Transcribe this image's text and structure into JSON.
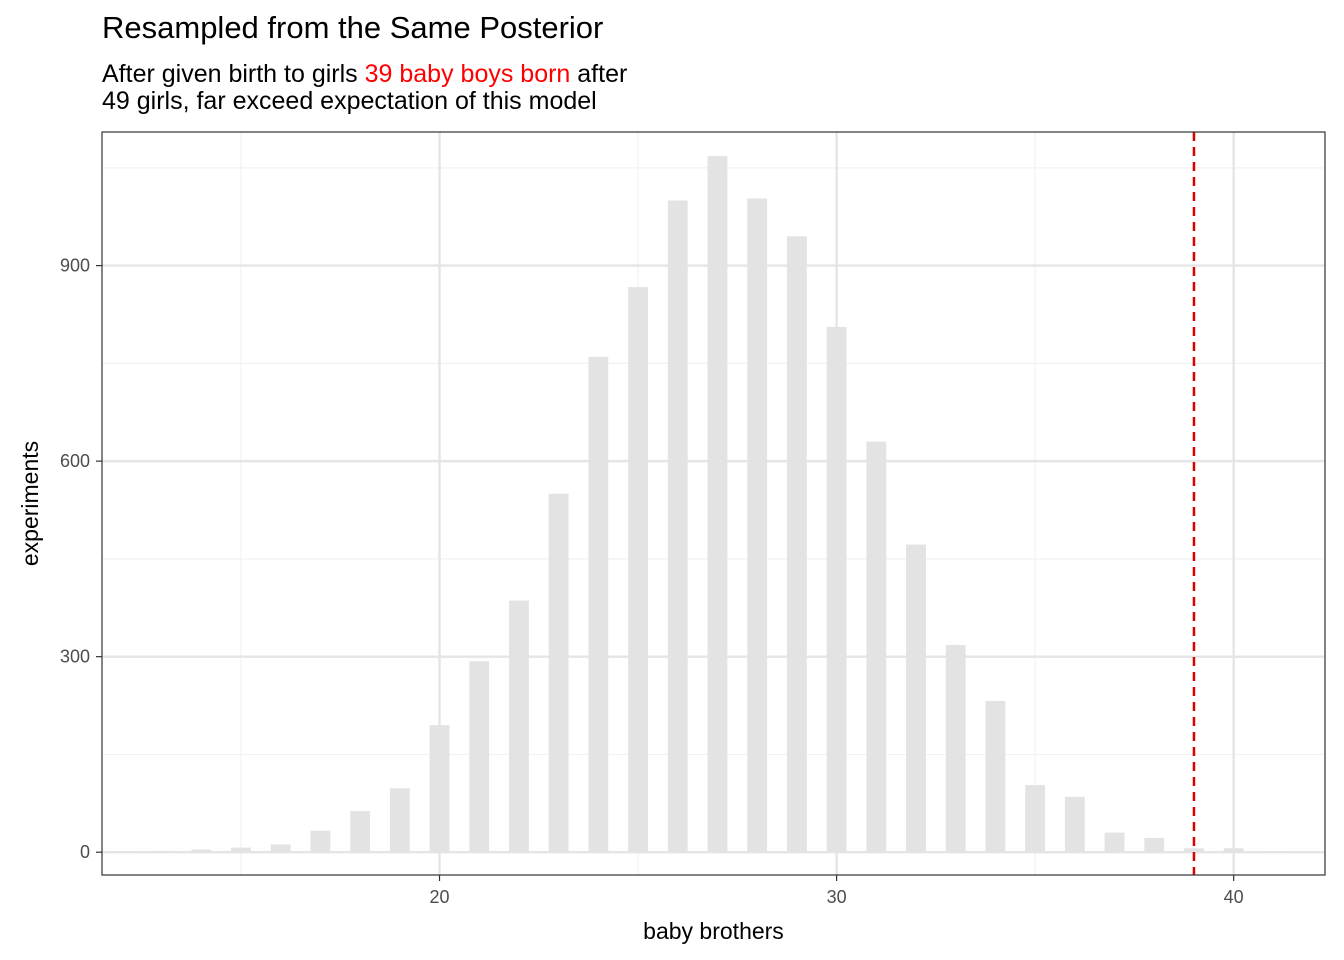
{
  "chart_data": {
    "type": "bar",
    "title": "Resampled from the Same Posterior",
    "subtitle": {
      "line1_before": "After given birth to girls ",
      "line1_highlight": "39 baby boys born",
      "line1_after": " after",
      "line2": "49 girls, far exceed expectation of this model"
    },
    "xlabel": "baby brothers",
    "ylabel": "experiments",
    "xlim": [
      11.5,
      42.3
    ],
    "ylim": [
      -35,
      1105
    ],
    "x_ticks": [
      20,
      30,
      40
    ],
    "x_minor_ticks": [
      15,
      25,
      35
    ],
    "y_ticks": [
      0,
      300,
      600,
      900
    ],
    "y_minor_ticks": [
      150,
      450,
      750,
      1050
    ],
    "x": [
      12,
      13,
      14,
      15,
      16,
      17,
      18,
      19,
      20,
      21,
      22,
      23,
      24,
      25,
      26,
      27,
      28,
      29,
      30,
      31,
      32,
      33,
      34,
      35,
      36,
      37,
      38,
      39,
      40,
      41
    ],
    "values": [
      1,
      2,
      4,
      7,
      12,
      33,
      63,
      98,
      195,
      293,
      386,
      550,
      760,
      867,
      1000,
      1068,
      1003,
      945,
      806,
      630,
      472,
      318,
      232,
      103,
      85,
      30,
      22,
      6,
      6,
      1
    ],
    "reference_line": {
      "x": 39,
      "color": "#dd0000",
      "style": "dashed"
    },
    "colors": {
      "bar": "#e3e3e3",
      "grid_major": "#e5e5e5",
      "grid_minor": "#f2f2f2",
      "highlight": "#ff0000"
    },
    "grid": true,
    "legend": "none"
  }
}
